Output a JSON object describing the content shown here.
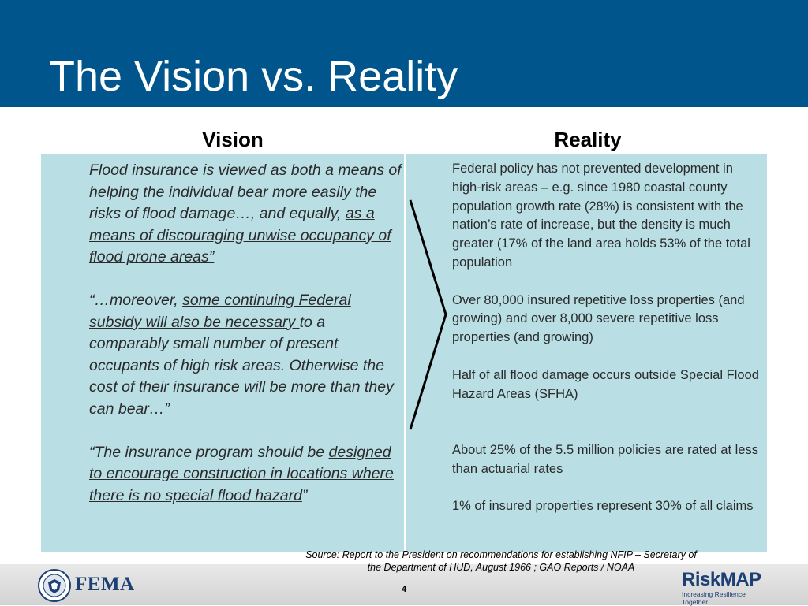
{
  "title": "The Vision vs. Reality",
  "headers": {
    "vision": "Vision",
    "reality": "Reality"
  },
  "vision": {
    "p1_a": "Flood insurance is viewed as both a means of helping the individual bear more easily the risks of flood damage…, and equally, ",
    "p1_u": "as a means of discouraging unwise occupancy of flood prone areas”",
    "p2_a": "“…moreover, ",
    "p2_u": "some continuing  Federal subsidy will also be necessary ",
    "p2_b": "to a comparably small number of present occupants of high risk areas. Otherwise the cost of their insurance will be more than they can bear…”",
    "p3_a": "“The insurance program should be ",
    "p3_u": "designed to encourage construction in locations where there is no special flood hazard",
    "p3_b": "”"
  },
  "reality": [
    "Federal policy has not prevented development in high-risk areas – e.g. since 1980 coastal county population growth rate (28%) is consistent with the nation’s rate of increase, but the density is much greater (17% of the land area holds 53% of the total population",
    "Over 80,000 insured repetitive loss properties (and growing) and over 8,000 severe repetitive loss properties (and growing)",
    "Half of all flood damage occurs outside Special Flood Hazard Areas (SFHA)",
    "About 25% of the 5.5 million policies are rated at less than actuarial  rates",
    "1% of insured properties represent 30% of all claims"
  ],
  "source": {
    "line1": "Source: Report to the President on recommendations for establishing NFIP – Secretary of",
    "line2": "the Department of HUD, August 1966 ; GAO Reports / NOAA"
  },
  "page_number": "4",
  "logos": {
    "fema": "FEMA",
    "riskmap_risk": "Risk",
    "riskmap_map": "MAP",
    "riskmap_tagline": "Increasing Resilience Together"
  },
  "colors": {
    "title_bar": "#00558c",
    "panel": "#b9dfe5",
    "logo_navy": "#1c3f74"
  }
}
